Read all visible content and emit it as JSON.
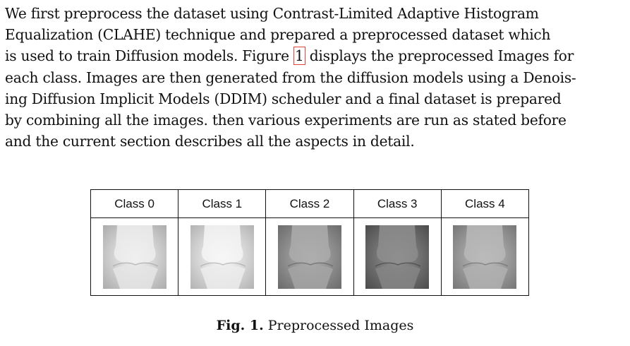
{
  "paragraph": {
    "lines": [
      "We first preprocess the dataset using Contrast-Limited Adaptive Histogram",
      "Equalization (CLAHE) technique and prepared a preprocessed dataset which",
      "is used to train Diffusion models. Figure ",
      "each class. Images are then generated from the diffusion models using a Denois-",
      "ing Diffusion Implicit Models (DDIM) scheduler and a final dataset is prepared",
      "by combining all the images. then various experiments are run as stated before",
      "and the current section describes all the aspects in detail."
    ],
    "figure_ref": "1",
    "line3_tail": " displays the preprocessed Images for"
  },
  "figure": {
    "classes": [
      {
        "label": "Class 0",
        "image_icon": "knee-xray-icon",
        "tone": "#cfcfcf"
      },
      {
        "label": "Class 1",
        "image_icon": "knee-xray-icon",
        "tone": "#d6d6d6"
      },
      {
        "label": "Class 2",
        "image_icon": "knee-xray-icon",
        "tone": "#8e8e8e"
      },
      {
        "label": "Class 3",
        "image_icon": "knee-xray-icon",
        "tone": "#6f6f6f"
      },
      {
        "label": "Class 4",
        "image_icon": "knee-xray-icon",
        "tone": "#9a9a9a"
      }
    ],
    "caption_label": "Fig. 1.",
    "caption_text": " Preprocessed Images"
  }
}
